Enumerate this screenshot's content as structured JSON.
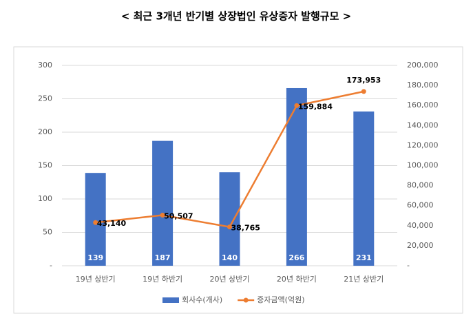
{
  "chart_data": {
    "type": "bar-line",
    "title": "< 최근 3개년 반기별 상장법인 유상증자 발행규모 >",
    "categories": [
      "19년 상반기",
      "19년 하반기",
      "20년 상반기",
      "20년 하반기",
      "21년 상반기"
    ],
    "series": [
      {
        "name": "회사수(개사)",
        "type": "bar",
        "color": "#4472c4",
        "values": [
          139,
          187,
          140,
          266,
          231
        ]
      },
      {
        "name": "증자금액(억원)",
        "type": "line",
        "axis": "y2",
        "color": "#ed7d31",
        "values": [
          43140,
          50507,
          38765,
          159884,
          173953
        ],
        "value_labels": [
          "43,140",
          "50,507",
          "38,765",
          "159,884",
          "173,953"
        ]
      }
    ],
    "ylim": [
      0,
      300
    ],
    "yticks": [
      {
        "value": 0,
        "label": "-"
      },
      50,
      100,
      150,
      200,
      250,
      300
    ],
    "y2lim": [
      0,
      200000
    ],
    "y2ticks": [
      {
        "value": 0,
        "label": "-"
      },
      {
        "value": 20000,
        "label": "20,000"
      },
      {
        "value": 40000,
        "label": "40,000"
      },
      {
        "value": 60000,
        "label": "60,000"
      },
      {
        "value": 80000,
        "label": "80,000"
      },
      {
        "value": 100000,
        "label": "100,000"
      },
      {
        "value": 120000,
        "label": "120,000"
      },
      {
        "value": 140000,
        "label": "140,000"
      },
      {
        "value": 160000,
        "label": "160,000"
      },
      {
        "value": 180000,
        "label": "180,000"
      },
      {
        "value": 200000,
        "label": "200,000"
      }
    ],
    "grid": true,
    "legend": "bottom"
  }
}
